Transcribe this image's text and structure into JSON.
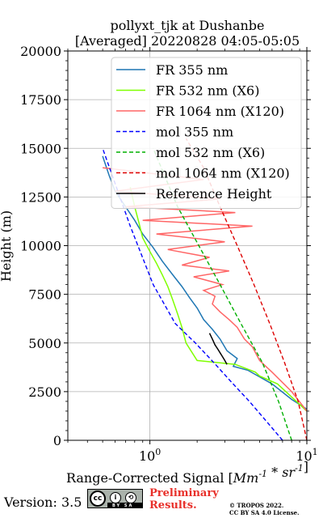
{
  "chart_data": {
    "type": "line",
    "title_line1": "pollyxt_tjk at Dushanbe",
    "title_line2": "[Averaged] 20220828 04:05-05:05",
    "xlabel": "Range-Corrected Signal [$Mm^{-1}*sr^{-1}$]",
    "ylabel": "Height (m)",
    "xscale": "log",
    "xlim": [
      0.3,
      10
    ],
    "ylim": [
      0,
      20000
    ],
    "y_ticks": [
      0,
      2500,
      5000,
      7500,
      10000,
      12500,
      15000,
      17500,
      20000
    ],
    "y_tick_labels": [
      "0",
      "2500",
      "5000",
      "7500",
      "10000",
      "12500",
      "15000",
      "17500",
      "20000"
    ],
    "x_tick_labels": [
      "10^0",
      "10^1"
    ],
    "grid": true,
    "legend_position": "upper right",
    "series": [
      {
        "name": "FR 355 nm",
        "color": "#1f77b4",
        "style": "solid",
        "x": [
          10.0,
          8.0,
          6.0,
          4.2,
          3.4,
          3.6,
          3.1,
          2.8,
          2.5,
          2.2,
          2.0,
          1.8,
          1.6,
          1.4,
          1.2,
          1.05,
          0.9,
          0.8,
          0.7,
          0.6,
          0.55,
          0.5
        ],
        "y": [
          1600,
          2100,
          2900,
          3600,
          3800,
          4200,
          4600,
          5200,
          5700,
          6200,
          6800,
          7300,
          7900,
          8500,
          9200,
          9900,
          10600,
          11300,
          12000,
          12800,
          13600,
          14600
        ]
      },
      {
        "name": "FR 532 nm (X6)",
        "color": "#7fff00",
        "style": "solid",
        "x": [
          10.0,
          6.5,
          5.0,
          4.7,
          3.5,
          2.0,
          1.7,
          1.6,
          1.5,
          1.4,
          1.3,
          1.2,
          1.1,
          1.0,
          0.9,
          0.85,
          0.8,
          0.75
        ],
        "y": [
          1500,
          2900,
          3300,
          3500,
          3900,
          4100,
          5000,
          5800,
          6500,
          7200,
          7900,
          8500,
          9100,
          9700,
          10400,
          11200,
          12000,
          13000
        ]
      },
      {
        "name": "FR 1064 nm (X120)",
        "color": "#ff6666",
        "style": "solid",
        "x": [
          10.0,
          8.0,
          6.0,
          5.0,
          4.5,
          4.0,
          3.6,
          3.2,
          2.8,
          2.5,
          2.6,
          2.2,
          2.9,
          1.9,
          3.2,
          1.6,
          2.4,
          1.3,
          3.0,
          1.1,
          4.5,
          0.9,
          3.5,
          0.7,
          2.8,
          0.6,
          2.2,
          0.5
        ],
        "y": [
          1500,
          2500,
          3500,
          4100,
          4800,
          5200,
          5800,
          6200,
          6600,
          7000,
          7400,
          7700,
          8000,
          8400,
          8700,
          9000,
          9400,
          9800,
          10200,
          10600,
          11000,
          11300,
          11700,
          12000,
          12400,
          12800,
          13400,
          14000
        ]
      },
      {
        "name": "mol 355 nm",
        "color": "#0000ff",
        "style": "dashed",
        "x": [
          7.0,
          5.5,
          4.3,
          3.3,
          2.55,
          1.95,
          1.45,
          1.05,
          0.75,
          0.5
        ],
        "y": [
          0,
          1000,
          2000,
          3000,
          4000,
          5000,
          6000,
          8000,
          11000,
          15000
        ]
      },
      {
        "name": "mol 532 nm (X6)",
        "color": "#00b000",
        "style": "dashed",
        "x": [
          8.0,
          6.6,
          5.2,
          3.8,
          2.8,
          2.05,
          1.5,
          1.05
        ],
        "y": [
          0,
          2000,
          4000,
          6000,
          8000,
          10000,
          12000,
          15000
        ]
      },
      {
        "name": "mol 1064 nm (X120)",
        "color": "#dd0000",
        "style": "dashed",
        "x": [
          10.0,
          8.8,
          7.2,
          5.8,
          4.6,
          3.6,
          2.8,
          2.2,
          1.7
        ],
        "y": [
          0,
          2000,
          4000,
          6000,
          8000,
          10000,
          12000,
          14000,
          15500
        ]
      },
      {
        "name": "Reference Height",
        "color": "#000000",
        "style": "solid",
        "x": [
          2.4,
          2.5,
          2.6,
          2.7,
          2.8,
          2.9,
          3.0,
          3.1
        ],
        "y": [
          5500,
          5200,
          4900,
          4700,
          4500,
          4300,
          4100,
          3900
        ]
      }
    ]
  },
  "footer": {
    "version": "Version: 3.5",
    "cc_badge_text": "BY SA",
    "preliminary_line1": "Preliminary",
    "preliminary_line2": "Results.",
    "copyright_line1": "© TROPOS 2022.",
    "copyright_line2": "CC BY SA 4.0 License."
  }
}
